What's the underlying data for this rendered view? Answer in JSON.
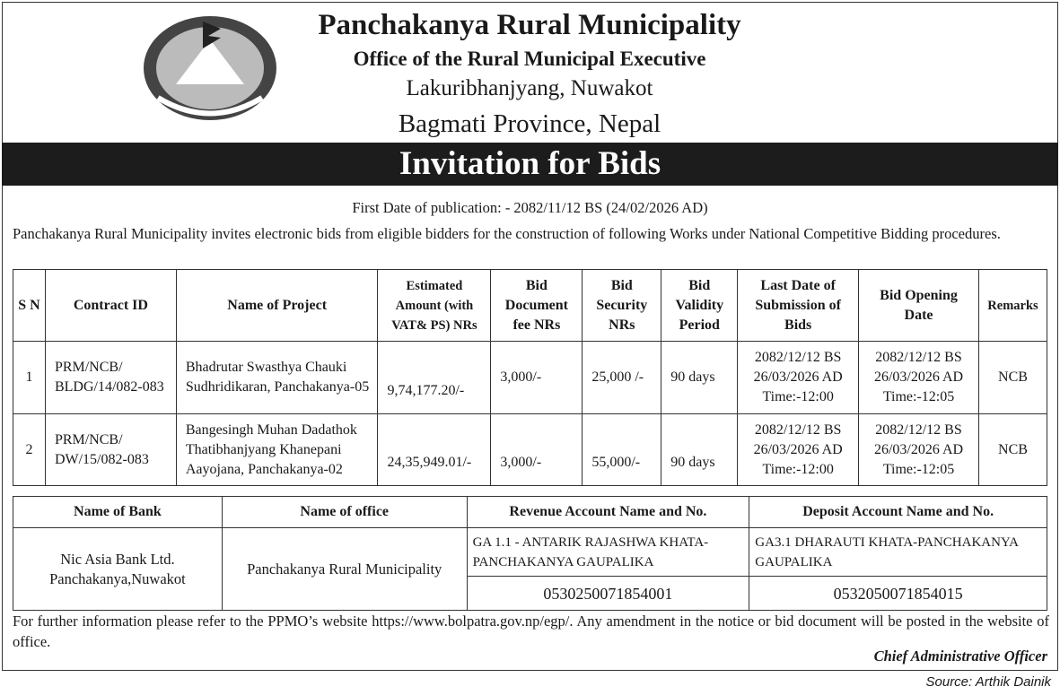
{
  "header": {
    "title": "Panchakanya Rural Municipality",
    "subtitle": "Office of the Rural Municipal Executive",
    "address": "Lakuribhanjyang, Nuwakot",
    "province": "Bagmati Province, Nepal",
    "logo": "nepal-government-emblem"
  },
  "notice_title": "Invitation for Bids",
  "publication": "First Date of publication: - 2082/11/12 BS (24/02/2026 AD)",
  "intro": "Panchakanya Rural Municipality invites electronic bids from eligible bidders for the construction of following Works under National Competitive Bidding procedures.",
  "works_table": {
    "headers": [
      "S N",
      "Contract ID",
      "Name of Project",
      "Estimated Amount (with VAT& PS) NRs",
      "Bid Document fee NRs",
      "Bid Security NRs",
      "Bid Validity Period",
      "Last Date of Submission of Bids",
      "Bid Opening Date",
      "Remarks"
    ],
    "rows": [
      {
        "sn": "1",
        "contract_id": "PRM/NCB/ BLDG/14/082-083",
        "project": "Bhadrutar Swasthya Chauki Sudhridikaran, Panchakanya-05",
        "amount": "9,74,177.20/-",
        "doc_fee": "3,000/-",
        "security": "25,000 /-",
        "validity": "90 days",
        "submission": [
          "2082/12/12 BS",
          "26/03/2026 AD",
          "Time:-12:00"
        ],
        "opening": [
          "2082/12/12 BS",
          "26/03/2026 AD",
          "Time:-12:05"
        ],
        "remarks": "NCB"
      },
      {
        "sn": "2",
        "contract_id": "PRM/NCB/ DW/15/082-083",
        "project": "Bangesingh Muhan Dadathok Thatibhanjyang Khanepani Aayojana, Panchakanya-02",
        "amount": "24,35,949.01/-",
        "doc_fee": "3,000/-",
        "security": "55,000/-",
        "validity": "90 days",
        "submission": [
          "2082/12/12 BS",
          "26/03/2026 AD",
          "Time:-12:00"
        ],
        "opening": [
          "2082/12/12 BS",
          "26/03/2026 AD",
          "Time:-12:05"
        ],
        "remarks": "NCB"
      }
    ]
  },
  "bank_table": {
    "headers": [
      "Name of Bank",
      "Name of office",
      "Revenue Account Name and No.",
      "Deposit Account Name and No."
    ],
    "bank": "Nic Asia Bank Ltd. Panchakanya,Nuwakot",
    "office": "Panchakanya Rural Municipality",
    "revenue_name": "GA 1.1 - ANTARIK RAJASHWA KHATA-PANCHAKANYA GAUPALIKA",
    "revenue_no": "0530250071854001",
    "deposit_name": "GA3.1 DHARAUTI KHATA-PANCHAKANYA GAUPALIKA",
    "deposit_no": "0532050071854015"
  },
  "footer": "For further information please refer to the PPMO’s website https://www.bolpatra.gov.np/egp/. Any amendment in the notice or bid document will be posted in the website of office.",
  "signatory": "Chief Administrative Officer",
  "source": "Source: Arthik Dainik"
}
